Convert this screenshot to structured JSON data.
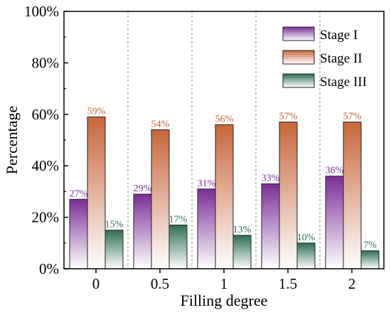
{
  "chart_data": {
    "type": "bar",
    "xlabel": "Filling degree",
    "ylabel": "Percentage",
    "categories": [
      "0",
      "0.5",
      "1",
      "1.5",
      "2"
    ],
    "ylim": [
      0,
      100
    ],
    "yticks": [
      0,
      20,
      40,
      60,
      80,
      100
    ],
    "ytick_labels": [
      "0%",
      "20%",
      "40%",
      "60%",
      "80%",
      "100%"
    ],
    "grid": "vertical dashed separators between categories",
    "legend_position": "top-right",
    "series": [
      {
        "name": "Stage I",
        "values": [
          27,
          29,
          31,
          33,
          36
        ],
        "labels": [
          "27%",
          "29%",
          "31%",
          "33%",
          "36%"
        ],
        "color": "#7B2D99",
        "label_color": "#7B2D99"
      },
      {
        "name": "Stage II",
        "values": [
          59,
          54,
          56,
          57,
          57
        ],
        "labels": [
          "59%",
          "54%",
          "56%",
          "57%",
          "57%"
        ],
        "color": "#C8663A",
        "label_color": "#C0602A"
      },
      {
        "name": "Stage III",
        "values": [
          15,
          17,
          13,
          10,
          7
        ],
        "labels": [
          "15%",
          "17%",
          "13%",
          "10%",
          "7%"
        ],
        "color": "#2E6E52",
        "label_color": "#2E6E52"
      }
    ]
  }
}
